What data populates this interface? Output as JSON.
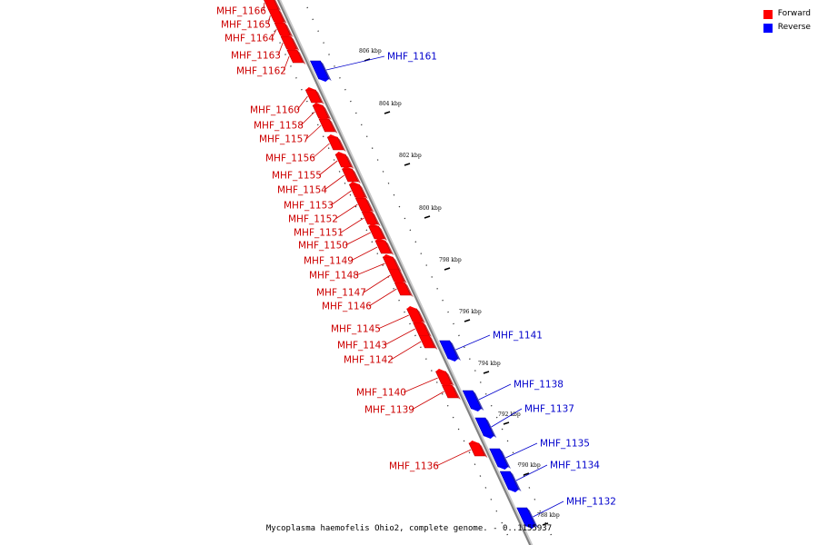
{
  "colors": {
    "forward": "#ff0000",
    "reverse": "#0000ff",
    "backbone": "#808080",
    "label_forward": "#cc0000",
    "label_reverse": "#0000cc"
  },
  "legend": {
    "forward_label": "Forward",
    "reverse_label": "Reverse"
  },
  "caption": "Mycoplasma haemofelis Ohio2, complete genome. - 0..1155937",
  "ticks": [
    "806 kbp",
    "804 kbp",
    "802 kbp",
    "800 kbp",
    "798 kbp",
    "796 kbp",
    "794 kbp",
    "792 kbp",
    "790 kbp",
    "788 kbp"
  ],
  "genes": [
    {
      "name": "MHF_1166",
      "strand": "forward"
    },
    {
      "name": "MHF_1165",
      "strand": "forward"
    },
    {
      "name": "MHF_1164",
      "strand": "forward"
    },
    {
      "name": "MHF_1163",
      "strand": "forward"
    },
    {
      "name": "MHF_1162",
      "strand": "forward"
    },
    {
      "name": "MHF_1161",
      "strand": "reverse"
    },
    {
      "name": "MHF_1160",
      "strand": "forward"
    },
    {
      "name": "MHF_1158",
      "strand": "forward"
    },
    {
      "name": "MHF_1157",
      "strand": "forward"
    },
    {
      "name": "MHF_1156",
      "strand": "forward"
    },
    {
      "name": "MHF_1155",
      "strand": "forward"
    },
    {
      "name": "MHF_1154",
      "strand": "forward"
    },
    {
      "name": "MHF_1153",
      "strand": "forward"
    },
    {
      "name": "MHF_1152",
      "strand": "forward"
    },
    {
      "name": "MHF_1151",
      "strand": "forward"
    },
    {
      "name": "MHF_1150",
      "strand": "forward"
    },
    {
      "name": "MHF_1149",
      "strand": "forward"
    },
    {
      "name": "MHF_1148",
      "strand": "forward"
    },
    {
      "name": "MHF_1147",
      "strand": "forward"
    },
    {
      "name": "MHF_1146",
      "strand": "forward"
    },
    {
      "name": "MHF_1145",
      "strand": "forward"
    },
    {
      "name": "MHF_1143",
      "strand": "forward"
    },
    {
      "name": "MHF_1142",
      "strand": "forward"
    },
    {
      "name": "MHF_1141",
      "strand": "reverse"
    },
    {
      "name": "MHF_1140",
      "strand": "forward"
    },
    {
      "name": "MHF_1139",
      "strand": "forward"
    },
    {
      "name": "MHF_1138",
      "strand": "reverse"
    },
    {
      "name": "MHF_1137",
      "strand": "reverse"
    },
    {
      "name": "MHF_1136",
      "strand": "forward"
    },
    {
      "name": "MHF_1135",
      "strand": "reverse"
    },
    {
      "name": "MHF_1134",
      "strand": "reverse"
    },
    {
      "name": "MHF_1132",
      "strand": "reverse"
    }
  ]
}
